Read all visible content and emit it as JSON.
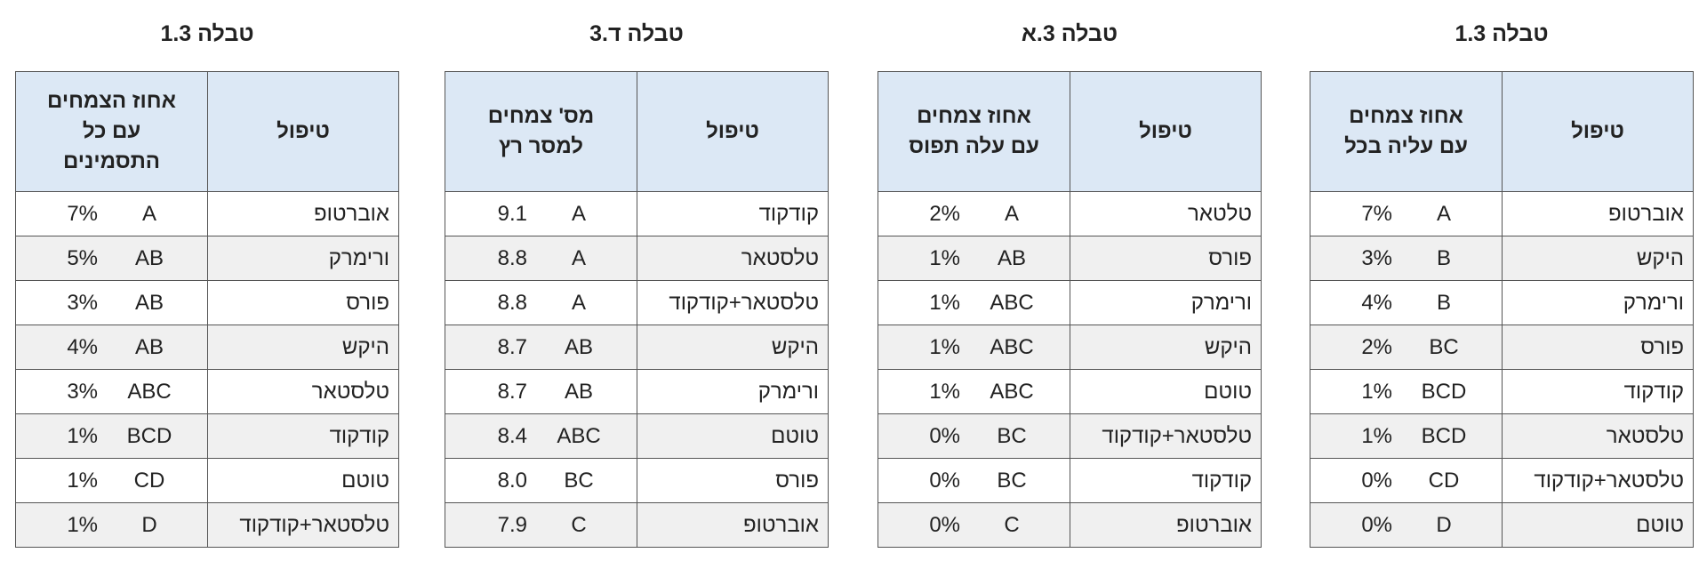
{
  "tables": [
    {
      "title": "טבלה 1.3",
      "headers": {
        "treatment": "טיפול",
        "metric": [
          "אחוז צמחים",
          "עם עליה בכל"
        ]
      },
      "rows": [
        [
          "אוברטופ",
          "A",
          "7%"
        ],
        [
          "היקש",
          "B",
          "3%"
        ],
        [
          "ורימרק",
          "B",
          "4%"
        ],
        [
          "פורס",
          "BC",
          "2%"
        ],
        [
          "קודקוד",
          "BCD",
          "1%"
        ],
        [
          "טלסטאר",
          "BCD",
          "1%"
        ],
        [
          "טלסטאר+קודקוד",
          "CD",
          "0%"
        ],
        [
          "טוטם",
          "D",
          "0%"
        ]
      ]
    },
    {
      "title": "טבלה 3.א",
      "headers": {
        "treatment": "טיפול",
        "metric": [
          "אחוז צמחים",
          "עם עלה תפוס"
        ]
      },
      "rows": [
        [
          "טלטאר",
          "A",
          "2%"
        ],
        [
          "פורס",
          "AB",
          "1%"
        ],
        [
          "ורימרק",
          "ABC",
          "1%"
        ],
        [
          "היקש",
          "ABC",
          "1%"
        ],
        [
          "טוטם",
          "ABC",
          "1%"
        ],
        [
          "טלסטאר+קודקוד",
          "BC",
          "0%"
        ],
        [
          "קודקוד",
          "BC",
          "0%"
        ],
        [
          "אוברטופ",
          "C",
          "0%"
        ]
      ]
    },
    {
      "title": "טבלה ד.3",
      "headers": {
        "treatment": "טיפול",
        "metric": [
          "מס' צמחים",
          "למסר רץ"
        ]
      },
      "rows": [
        [
          "קודקוד",
          "A",
          "9.1"
        ],
        [
          "טלסטאר",
          "A",
          "8.8"
        ],
        [
          "טלסטאר+קודקוד",
          "A",
          "8.8"
        ],
        [
          "היקש",
          "AB",
          "8.7"
        ],
        [
          "ורימרק",
          "AB",
          "8.7"
        ],
        [
          "טוטם",
          "ABC",
          "8.4"
        ],
        [
          "פורס",
          "BC",
          "8.0"
        ],
        [
          "אוברטופ",
          "C",
          "7.9"
        ]
      ]
    },
    {
      "title": "טבלה 1.3",
      "headers": {
        "treatment": "טיפול",
        "metric": [
          "אחוז הצמחים",
          "עם כל",
          "התסמינים"
        ]
      },
      "rows": [
        [
          "אוברטופ",
          "A",
          "7%"
        ],
        [
          "ורימרק",
          "AB",
          "5%"
        ],
        [
          "פורס",
          "AB",
          "3%"
        ],
        [
          "היקש",
          "AB",
          "4%"
        ],
        [
          "טלסטאר",
          "ABC",
          "3%"
        ],
        [
          "קודקוד",
          "BCD",
          "1%"
        ],
        [
          "טוטם",
          "CD",
          "1%"
        ],
        [
          "טלסטאר+קודקוד",
          "D",
          "1%"
        ]
      ]
    }
  ]
}
